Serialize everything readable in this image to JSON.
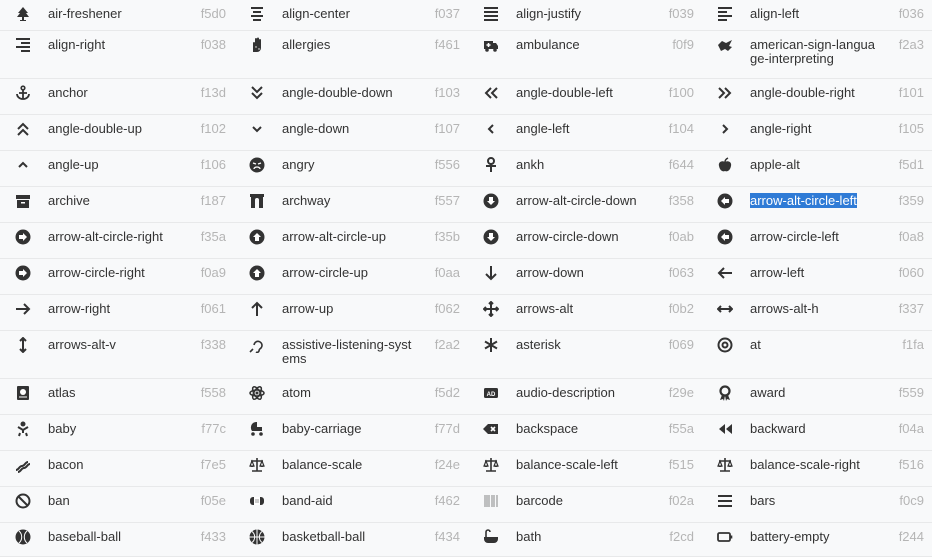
{
  "selected": "arrow-alt-circle-left",
  "rows": [
    [
      {
        "name": "air-freshener",
        "code": "f5d0",
        "icon": "air-freshener-icon"
      },
      {
        "name": "align-center",
        "code": "f037",
        "icon": "align-center-icon"
      },
      {
        "name": "align-justify",
        "code": "f039",
        "icon": "align-justify-icon"
      },
      {
        "name": "align-left",
        "code": "f036",
        "icon": "align-left-icon"
      }
    ],
    [
      {
        "name": "align-right",
        "code": "f038",
        "icon": "align-right-icon"
      },
      {
        "name": "allergies",
        "code": "f461",
        "icon": "allergies-icon"
      },
      {
        "name": "ambulance",
        "code": "f0f9",
        "icon": "ambulance-icon"
      },
      {
        "name": "american-sign-language-interpreting",
        "code": "f2a3",
        "icon": "american-sign-language-interpreting-icon"
      }
    ],
    [
      {
        "name": "anchor",
        "code": "f13d",
        "icon": "anchor-icon"
      },
      {
        "name": "angle-double-down",
        "code": "f103",
        "icon": "angle-double-down-icon"
      },
      {
        "name": "angle-double-left",
        "code": "f100",
        "icon": "angle-double-left-icon"
      },
      {
        "name": "angle-double-right",
        "code": "f101",
        "icon": "angle-double-right-icon"
      }
    ],
    [
      {
        "name": "angle-double-up",
        "code": "f102",
        "icon": "angle-double-up-icon"
      },
      {
        "name": "angle-down",
        "code": "f107",
        "icon": "angle-down-icon"
      },
      {
        "name": "angle-left",
        "code": "f104",
        "icon": "angle-left-icon"
      },
      {
        "name": "angle-right",
        "code": "f105",
        "icon": "angle-right-icon"
      }
    ],
    [
      {
        "name": "angle-up",
        "code": "f106",
        "icon": "angle-up-icon"
      },
      {
        "name": "angry",
        "code": "f556",
        "icon": "angry-icon"
      },
      {
        "name": "ankh",
        "code": "f644",
        "icon": "ankh-icon"
      },
      {
        "name": "apple-alt",
        "code": "f5d1",
        "icon": "apple-alt-icon"
      }
    ],
    [
      {
        "name": "archive",
        "code": "f187",
        "icon": "archive-icon"
      },
      {
        "name": "archway",
        "code": "f557",
        "icon": "archway-icon"
      },
      {
        "name": "arrow-alt-circle-down",
        "code": "f358",
        "icon": "arrow-alt-circle-down-icon"
      },
      {
        "name": "arrow-alt-circle-left",
        "code": "f359",
        "icon": "arrow-alt-circle-left-icon"
      }
    ],
    [
      {
        "name": "arrow-alt-circle-right",
        "code": "f35a",
        "icon": "arrow-alt-circle-right-icon"
      },
      {
        "name": "arrow-alt-circle-up",
        "code": "f35b",
        "icon": "arrow-alt-circle-up-icon"
      },
      {
        "name": "arrow-circle-down",
        "code": "f0ab",
        "icon": "arrow-circle-down-icon"
      },
      {
        "name": "arrow-circle-left",
        "code": "f0a8",
        "icon": "arrow-circle-left-icon"
      }
    ],
    [
      {
        "name": "arrow-circle-right",
        "code": "f0a9",
        "icon": "arrow-circle-right-icon"
      },
      {
        "name": "arrow-circle-up",
        "code": "f0aa",
        "icon": "arrow-circle-up-icon"
      },
      {
        "name": "arrow-down",
        "code": "f063",
        "icon": "arrow-down-icon"
      },
      {
        "name": "arrow-left",
        "code": "f060",
        "icon": "arrow-left-icon"
      }
    ],
    [
      {
        "name": "arrow-right",
        "code": "f061",
        "icon": "arrow-right-icon"
      },
      {
        "name": "arrow-up",
        "code": "f062",
        "icon": "arrow-up-icon"
      },
      {
        "name": "arrows-alt",
        "code": "f0b2",
        "icon": "arrows-alt-icon"
      },
      {
        "name": "arrows-alt-h",
        "code": "f337",
        "icon": "arrows-alt-h-icon"
      }
    ],
    [
      {
        "name": "arrows-alt-v",
        "code": "f338",
        "icon": "arrows-alt-v-icon"
      },
      {
        "name": "assistive-listening-systems",
        "code": "f2a2",
        "icon": "assistive-listening-systems-icon"
      },
      {
        "name": "asterisk",
        "code": "f069",
        "icon": "asterisk-icon"
      },
      {
        "name": "at",
        "code": "f1fa",
        "icon": "at-icon"
      }
    ],
    [
      {
        "name": "atlas",
        "code": "f558",
        "icon": "atlas-icon"
      },
      {
        "name": "atom",
        "code": "f5d2",
        "icon": "atom-icon"
      },
      {
        "name": "audio-description",
        "code": "f29e",
        "icon": "audio-description-icon"
      },
      {
        "name": "award",
        "code": "f559",
        "icon": "award-icon"
      }
    ],
    [
      {
        "name": "baby",
        "code": "f77c",
        "icon": "baby-icon"
      },
      {
        "name": "baby-carriage",
        "code": "f77d",
        "icon": "baby-carriage-icon"
      },
      {
        "name": "backspace",
        "code": "f55a",
        "icon": "backspace-icon"
      },
      {
        "name": "backward",
        "code": "f04a",
        "icon": "backward-icon"
      }
    ],
    [
      {
        "name": "bacon",
        "code": "f7e5",
        "icon": "bacon-icon"
      },
      {
        "name": "balance-scale",
        "code": "f24e",
        "icon": "balance-scale-icon"
      },
      {
        "name": "balance-scale-left",
        "code": "f515",
        "icon": "balance-scale-left-icon"
      },
      {
        "name": "balance-scale-right",
        "code": "f516",
        "icon": "balance-scale-right-icon"
      }
    ],
    [
      {
        "name": "ban",
        "code": "f05e",
        "icon": "ban-icon"
      },
      {
        "name": "band-aid",
        "code": "f462",
        "icon": "band-aid-icon"
      },
      {
        "name": "barcode",
        "code": "f02a",
        "icon": "barcode-icon"
      },
      {
        "name": "bars",
        "code": "f0c9",
        "icon": "bars-icon"
      }
    ],
    [
      {
        "name": "baseball-ball",
        "code": "f433",
        "icon": "baseball-ball-icon"
      },
      {
        "name": "basketball-ball",
        "code": "f434",
        "icon": "basketball-ball-icon"
      },
      {
        "name": "bath",
        "code": "f2cd",
        "icon": "bath-icon"
      },
      {
        "name": "battery-empty",
        "code": "f244",
        "icon": "battery-empty-icon"
      }
    ]
  ]
}
